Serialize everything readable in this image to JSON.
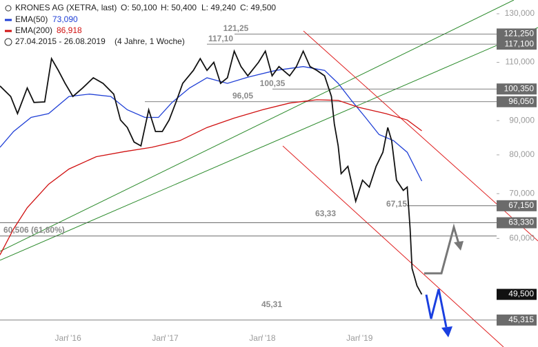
{
  "chart_data": {
    "type": "line",
    "log_scale": true,
    "title": "KRONES AG (XETRA, last)",
    "open": "O: 50,100",
    "high": "H: 50,400",
    "low": "L: 49,240",
    "close": "C: 49,500",
    "period": "27.04.2015 - 26.08.2019",
    "period_note": "(4 Jahre, 1 Woche)",
    "xlim": [
      2015.3,
      2020.41
    ],
    "ylim": [
      41.3,
      136.3
    ],
    "xticks": [
      {
        "value": 2016,
        "label": "Jan '16"
      },
      {
        "value": 2017,
        "label": "Jan '17"
      },
      {
        "value": 2018,
        "label": "Jan '18"
      },
      {
        "value": 2019,
        "label": "Jan '19"
      }
    ],
    "yticks": [
      {
        "value": 60,
        "label": "60,000"
      },
      {
        "value": 70,
        "label": "70,000"
      },
      {
        "value": 80,
        "label": "80,000"
      },
      {
        "value": 90,
        "label": "90,000"
      },
      {
        "value": 100,
        "label": "100,000"
      },
      {
        "value": 110,
        "label": "110,000"
      },
      {
        "value": 130,
        "label": "130,000"
      }
    ],
    "price": {
      "color": "#111111",
      "x": [
        2015.3,
        2015.41,
        2015.48,
        2015.58,
        2015.65,
        2015.76,
        2015.83,
        2015.9,
        2015.97,
        2016.05,
        2016.15,
        2016.26,
        2016.36,
        2016.47,
        2016.54,
        2016.61,
        2016.68,
        2016.75,
        2016.83,
        2016.9,
        2016.97,
        2017.04,
        2017.11,
        2017.18,
        2017.29,
        2017.36,
        2017.43,
        2017.5,
        2017.57,
        2017.64,
        2017.71,
        2017.78,
        2017.85,
        2017.96,
        2018.03,
        2018.1,
        2018.17,
        2018.28,
        2018.35,
        2018.42,
        2018.49,
        2018.56,
        2018.64,
        2018.71,
        2018.74,
        2018.78,
        2018.81,
        2018.88,
        2018.96,
        2019.03,
        2019.1,
        2019.17,
        2019.24,
        2019.29,
        2019.33,
        2019.38,
        2019.45,
        2019.49,
        2019.52,
        2019.54,
        2019.56,
        2019.59,
        2019.64
      ],
      "values": [
        101.4,
        97.8,
        92.2,
        100.7,
        95.8,
        96.0,
        111.4,
        107.0,
        102.3,
        97.8,
        100.7,
        104.3,
        102.3,
        98.6,
        90.2,
        87.9,
        83.6,
        82.5,
        93.4,
        86.7,
        86.7,
        90.2,
        95.8,
        102.3,
        107.0,
        111.4,
        107.0,
        110.0,
        102.3,
        104.3,
        114.3,
        108.4,
        105.0,
        110.0,
        114.3,
        105.0,
        108.4,
        105.0,
        108.4,
        114.3,
        108.4,
        107.0,
        105.0,
        97.8,
        89.0,
        82.5,
        75.0,
        76.9,
        68.2,
        73.3,
        71.6,
        76.9,
        80.7,
        87.9,
        84.0,
        73.3,
        70.8,
        71.6,
        62.0,
        54.1,
        52.9,
        51.0,
        49.5
      ]
    },
    "series": [
      {
        "name": "EMA(50)",
        "last_label": "73,090",
        "color": "#1f3fd6",
        "x": [
          2015.3,
          2015.44,
          2015.62,
          2015.8,
          2016.01,
          2016.22,
          2016.44,
          2016.61,
          2016.79,
          2016.93,
          2017.07,
          2017.25,
          2017.43,
          2017.64,
          2017.85,
          2018.14,
          2018.42,
          2018.64,
          2018.78,
          2018.92,
          2019.06,
          2019.2,
          2019.35,
          2019.49,
          2019.64
        ],
        "values": [
          82.1,
          86.7,
          91.0,
          92.2,
          97.8,
          98.6,
          97.8,
          93.4,
          91.0,
          91.0,
          95.8,
          100.7,
          104.3,
          102.3,
          104.5,
          107.0,
          108.4,
          107.0,
          102.3,
          96.3,
          91.0,
          85.8,
          84.0,
          80.7,
          73.1
        ]
      },
      {
        "name": "EMA(200)",
        "last_label": "86,918",
        "color": "#d01010",
        "x": [
          2015.3,
          2015.44,
          2015.58,
          2015.8,
          2016.01,
          2016.29,
          2016.58,
          2016.86,
          2017.15,
          2017.43,
          2017.71,
          2018.0,
          2018.28,
          2018.56,
          2018.78,
          2018.99,
          2019.27,
          2019.49,
          2019.64
        ],
        "values": [
          56.7,
          62.0,
          66.7,
          72.3,
          76.2,
          79.5,
          80.9,
          82.1,
          84.0,
          87.9,
          90.8,
          93.4,
          95.6,
          96.7,
          96.5,
          94.2,
          92.2,
          90.2,
          86.9
        ]
      }
    ],
    "levels": [
      {
        "value": 121.25,
        "label": "121,250",
        "note": "121,25"
      },
      {
        "value": 117.1,
        "label": "117,100",
        "note": "117,10"
      },
      {
        "value": 100.35,
        "label": "100,350",
        "note": "100,35"
      },
      {
        "value": 96.05,
        "label": "96,050",
        "note": "96,05"
      },
      {
        "value": 67.15,
        "label": "67,150",
        "note": "67,15"
      },
      {
        "value": 63.33,
        "label": "63,330",
        "note": "63,33"
      },
      {
        "value": 60.506,
        "note": "60,506 (61,80%)"
      },
      {
        "value": 45.315,
        "label": "45,315",
        "note": "45,31"
      }
    ],
    "last_price": {
      "value": 49.5,
      "label": "49,500"
    }
  }
}
